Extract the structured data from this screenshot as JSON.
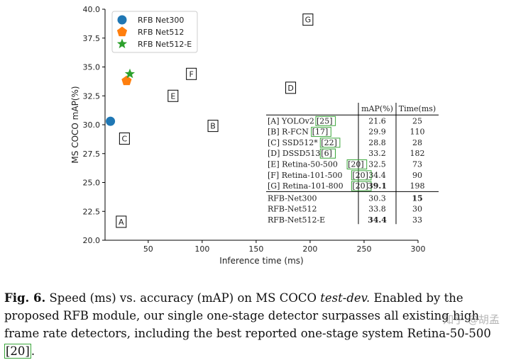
{
  "chart_data": {
    "type": "scatter",
    "xlabel": "Inference time (ms)",
    "ylabel": "MS COCO mAP(%)",
    "xlim": [
      10,
      300
    ],
    "ylim": [
      20.0,
      40.0
    ],
    "xticks": [
      50,
      100,
      150,
      200,
      250,
      300
    ],
    "yticks": [
      20.0,
      22.5,
      25.0,
      27.5,
      30.0,
      32.5,
      35.0,
      37.5,
      40.0
    ],
    "legend_position": "top-left",
    "series": [
      {
        "name": "RFB Net300",
        "marker": "circle",
        "color": "#1f77b4",
        "x": 15,
        "y": 30.3
      },
      {
        "name": "RFB Net512",
        "marker": "pentagon",
        "color": "#ff7f0e",
        "x": 30,
        "y": 33.8
      },
      {
        "name": "RFB Net512-E",
        "marker": "star",
        "color": "#2ca02c",
        "x": 33,
        "y": 34.4
      }
    ],
    "boxed_points": [
      {
        "label": "A",
        "x": 25,
        "y": 21.6
      },
      {
        "label": "B",
        "x": 110,
        "y": 29.9
      },
      {
        "label": "C",
        "x": 28,
        "y": 28.8
      },
      {
        "label": "D",
        "x": 182,
        "y": 33.2
      },
      {
        "label": "E",
        "x": 73,
        "y": 32.5
      },
      {
        "label": "F",
        "x": 90,
        "y": 34.4
      },
      {
        "label": "G",
        "x": 198,
        "y": 39.1
      }
    ],
    "table": {
      "headers": [
        "",
        "mAP(%)",
        "Time(ms)"
      ],
      "rows": [
        {
          "method": "[A] YOLOv2",
          "ref": "[25]",
          "map": "21.6",
          "time": "25"
        },
        {
          "method": "[B] R-FCN",
          "ref": "[17]",
          "map": "29.9",
          "time": "110"
        },
        {
          "method": "[C] SSD512*",
          "ref": "[22]",
          "map": "28.8",
          "time": "28"
        },
        {
          "method": "[D] DSSD513",
          "ref": "[6]",
          "map": "33.2",
          "time": "182"
        },
        {
          "method": "[E] Retina-50-500",
          "ref": "[20]",
          "map": "32.5",
          "time": "73"
        },
        {
          "method": "[F] Retina-101-500",
          "ref": "[20]",
          "map": "34.4",
          "time": "90"
        },
        {
          "method": "[G] Retina-101-800",
          "ref": "[20]",
          "map": "39.1",
          "time": "198"
        },
        {
          "method": "RFB-Net300",
          "ref": "",
          "map": "30.3",
          "time": "15"
        },
        {
          "method": "RFB-Net512",
          "ref": "",
          "map": "33.8",
          "time": "30"
        },
        {
          "method": "RFB-Net512-E",
          "ref": "",
          "map": "34.4",
          "time": "33"
        }
      ],
      "bold": {
        "map": [
          "39.1",
          "34.4"
        ],
        "time": [
          "15"
        ]
      },
      "rfb_row_start": 7
    }
  },
  "caption": {
    "label": "Fig. 6.",
    "text_before_italic": "Speed (ms) vs. accuracy (mAP) on MS COCO",
    "italic": "test-dev.",
    "text_after": "Enabled by the proposed RFB module, our single one-stage detector surpasses all existing high frame rate detectors, including the best reported one-stage system Retina-50-500",
    "cite": "[20]",
    "end": "."
  },
  "watermark": "知乎 @胡孟",
  "colors": {
    "cite_box": "#3aa63a",
    "axis": "#000000"
  }
}
